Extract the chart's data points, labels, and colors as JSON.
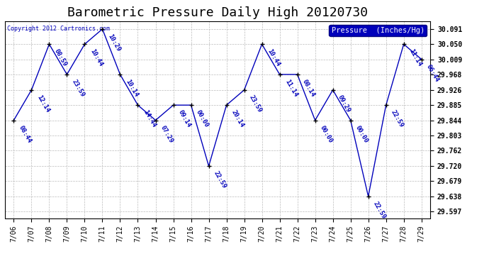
{
  "title": "Barometric Pressure Daily High 20120730",
  "copyright": "Copyright 2012 Cartronics.com",
  "legend_label": "Pressure  (Inches/Hg)",
  "dates": [
    "7/06",
    "7/07",
    "7/08",
    "7/09",
    "7/10",
    "7/11",
    "7/12",
    "7/13",
    "7/14",
    "7/15",
    "7/16",
    "7/17",
    "7/18",
    "7/19",
    "7/20",
    "7/21",
    "7/22",
    "7/23",
    "7/24",
    "7/25",
    "7/26",
    "7/27",
    "7/28",
    "7/29"
  ],
  "x_indices": [
    0,
    1,
    2,
    3,
    4,
    5,
    6,
    7,
    8,
    9,
    10,
    11,
    12,
    13,
    14,
    15,
    16,
    17,
    18,
    19,
    20,
    21,
    22,
    23
  ],
  "pressures": [
    29.844,
    29.926,
    30.05,
    29.968,
    30.05,
    30.091,
    29.968,
    29.885,
    29.844,
    29.885,
    29.885,
    29.72,
    29.885,
    29.926,
    30.05,
    29.968,
    29.968,
    29.844,
    29.926,
    29.844,
    29.638,
    29.885,
    30.05,
    30.009
  ],
  "times": [
    "08:44",
    "12:14",
    "08:59",
    "23:59",
    "10:44",
    "10:29",
    "10:14",
    "14:44",
    "07:29",
    "09:14",
    "00:00",
    "22:59",
    "20:14",
    "23:59",
    "10:44",
    "11:14",
    "08:14",
    "00:00",
    "09:29",
    "00:00",
    "22:59",
    "22:59",
    "11:14",
    "06:44"
  ],
  "line_color": "#0000bb",
  "marker_color": "#000000",
  "background_color": "#ffffff",
  "grid_color": "#bbbbbb",
  "ylim_min": 29.579,
  "ylim_max": 30.112,
  "yticks": [
    29.597,
    29.638,
    29.679,
    29.72,
    29.762,
    29.803,
    29.844,
    29.885,
    29.926,
    29.968,
    30.009,
    30.05,
    30.091
  ],
  "title_fontsize": 13,
  "label_fontsize": 6.5,
  "tick_fontsize": 7,
  "legend_fontsize": 7.5
}
